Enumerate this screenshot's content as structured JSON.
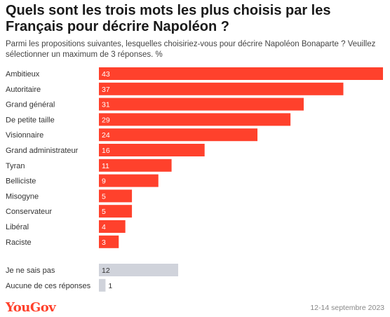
{
  "title": "Quels sont les trois mots les plus choisis par les Français pour décrire Napoléon ?",
  "subtitle": "Parmi les propositions suivantes, lesquelles choisiriez-vous pour décrire Napoléon Bonaparte ? Veuillez sélectionner un maximum de 3 réponses. %",
  "footer": {
    "logo": "YouGov",
    "date": "12-14 septembre 2023"
  },
  "colors": {
    "main_bar": "#ff412c",
    "other_bar": "#d0d3db",
    "main_value_text": "#ffffff",
    "other_value_text": "#333333"
  },
  "chart_data": {
    "type": "bar",
    "orientation": "horizontal",
    "xlim": [
      0,
      43
    ],
    "grid": false,
    "categories": [
      "Ambitieux",
      "Autoritaire",
      "Grand général",
      "De petite taille",
      "Visionnaire",
      "Grand administrateur",
      "Tyran",
      "Belliciste",
      "Misogyne",
      "Conservateur",
      "Libéral",
      "Raciste"
    ],
    "values": [
      43,
      37,
      31,
      29,
      24,
      16,
      11,
      9,
      5,
      5,
      4,
      3
    ],
    "other_categories": [
      "Je ne sais pas",
      "Aucune de ces réponses"
    ],
    "other_values": [
      12,
      1
    ]
  }
}
